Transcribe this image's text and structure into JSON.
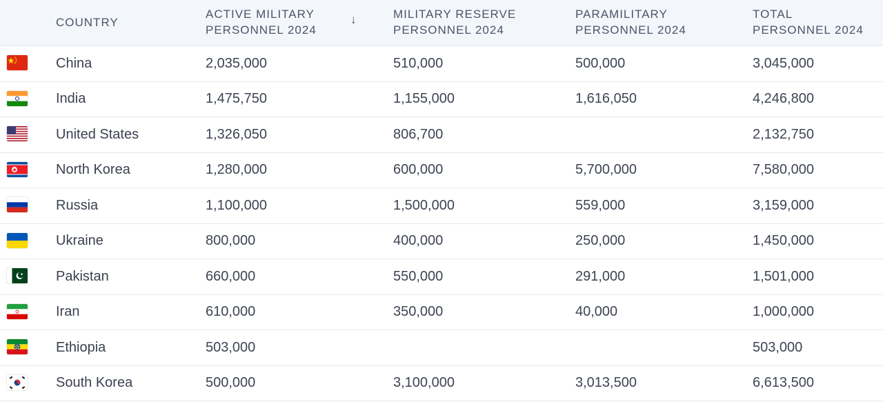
{
  "headers": {
    "country": "COUNTRY",
    "active_l1": "ACTIVE MILITARY",
    "active_l2": "PERSONNEL 2024",
    "reserve_l1": "MILITARY RESERVE",
    "reserve_l2": "PERSONNEL 2024",
    "para_l1": "PARAMILITARY",
    "para_l2": "PERSONNEL 2024",
    "total_l1": "TOTAL",
    "total_l2": "PERSONNEL 2024",
    "sort_arrow": "↓"
  },
  "rows": [
    {
      "country": "China",
      "flag": "china-flag-icon",
      "active": "2,035,000",
      "reserve": "510,000",
      "para": "500,000",
      "total": "3,045,000"
    },
    {
      "country": "India",
      "flag": "india-flag-icon",
      "active": "1,475,750",
      "reserve": "1,155,000",
      "para": "1,616,050",
      "total": "4,246,800"
    },
    {
      "country": "United States",
      "flag": "usa-flag-icon",
      "active": "1,326,050",
      "reserve": "806,700",
      "para": "",
      "total": "2,132,750"
    },
    {
      "country": "North Korea",
      "flag": "north-korea-flag-icon",
      "active": "1,280,000",
      "reserve": "600,000",
      "para": "5,700,000",
      "total": "7,580,000"
    },
    {
      "country": "Russia",
      "flag": "russia-flag-icon",
      "active": "1,100,000",
      "reserve": "1,500,000",
      "para": "559,000",
      "total": "3,159,000"
    },
    {
      "country": "Ukraine",
      "flag": "ukraine-flag-icon",
      "active": "800,000",
      "reserve": "400,000",
      "para": "250,000",
      "total": "1,450,000"
    },
    {
      "country": "Pakistan",
      "flag": "pakistan-flag-icon",
      "active": "660,000",
      "reserve": "550,000",
      "para": "291,000",
      "total": "1,501,000"
    },
    {
      "country": "Iran",
      "flag": "iran-flag-icon",
      "active": "610,000",
      "reserve": "350,000",
      "para": "40,000",
      "total": "1,000,000"
    },
    {
      "country": "Ethiopia",
      "flag": "ethiopia-flag-icon",
      "active": "503,000",
      "reserve": "",
      "para": "",
      "total": "503,000"
    },
    {
      "country": "South Korea",
      "flag": "south-korea-flag-icon",
      "active": "500,000",
      "reserve": "3,100,000",
      "para": "3,013,500",
      "total": "6,613,500"
    }
  ]
}
